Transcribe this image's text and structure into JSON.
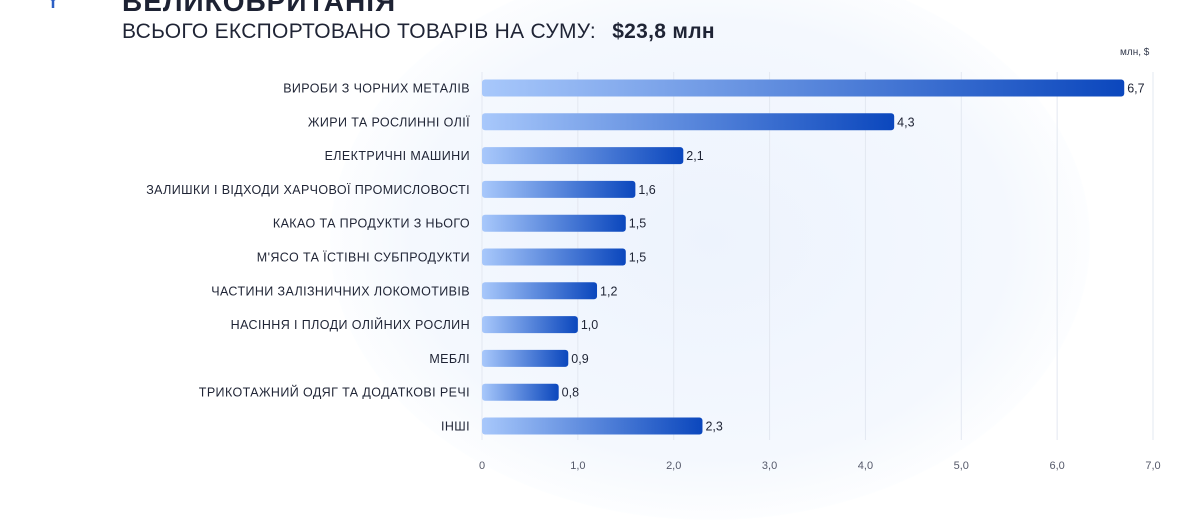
{
  "header": {
    "title_cut": "ВЕЛИКОБРИТАНІЯ",
    "subtitle": "ВСЬОГО ЕКСПОРТОВАНО ТОВАРІВ НА СУМУ:",
    "total": "$23,8 млн"
  },
  "colors": {
    "bar_start": "#a8c8fb",
    "bar_end": "#0b47bd",
    "text": "#1f2435"
  },
  "chart_data": {
    "type": "bar",
    "orientation": "horizontal",
    "unit_label": "млн, $",
    "categories": [
      "ВИРОБИ З ЧОРНИХ МЕТАЛІВ",
      "ЖИРИ ТА РОСЛИННІ ОЛІЇ",
      "ЕЛЕКТРИЧНІ МАШИНИ",
      "ЗАЛИШКИ І ВІДХОДИ ХАРЧОВОЇ ПРОМИСЛОВОСТІ",
      "КАКАО ТА ПРОДУКТИ З НЬОГО",
      "М'ЯСО ТА ЇСТІВНІ СУБПРОДУКТИ",
      "ЧАСТИНИ ЗАЛІЗНИЧНИХ ЛОКОМОТИВІВ",
      "НАСІННЯ І ПЛОДИ ОЛІЙНИХ РОСЛИН",
      "МЕБЛІ",
      "ТРИКОТАЖНИЙ ОДЯГ ТА ДОДАТКОВІ РЕЧІ",
      "ІНШІ"
    ],
    "values": [
      6.7,
      4.3,
      2.1,
      1.6,
      1.5,
      1.5,
      1.2,
      1.0,
      0.9,
      0.8,
      2.3
    ],
    "value_labels": [
      "6,7",
      "4,3",
      "2,1",
      "1,6",
      "1,5",
      "1,5",
      "1,2",
      "1,0",
      "0,9",
      "0,8",
      "2,3"
    ],
    "xlim": [
      0,
      7
    ],
    "x_ticks": [
      0,
      1,
      2,
      3,
      4,
      5,
      6,
      7
    ],
    "x_tick_labels": [
      "0",
      "1,0",
      "2,0",
      "3,0",
      "4,0",
      "5,0",
      "6,0",
      "7,0"
    ],
    "grid": true
  }
}
